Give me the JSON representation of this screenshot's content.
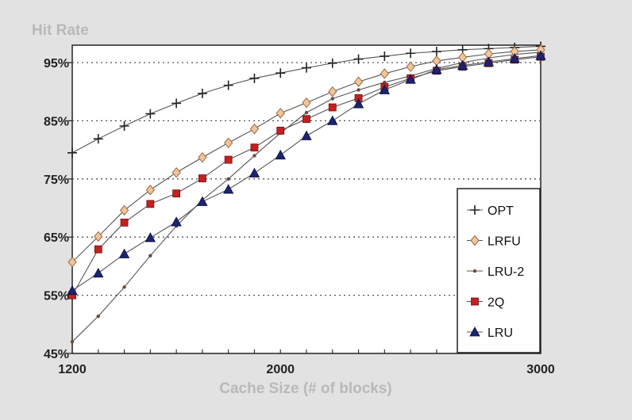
{
  "chart_data": {
    "type": "line",
    "title": "",
    "ylabel": "Hit Rate",
    "xlabel": "Cache Size (# of blocks)",
    "xlim": [
      1200,
      3000
    ],
    "ylim": [
      45,
      95
    ],
    "x_ticks": [
      1200,
      2000,
      3000
    ],
    "x_tick_labels": [
      "1200",
      "2000",
      "3000"
    ],
    "y_ticks": [
      45,
      55,
      65,
      75,
      85,
      95
    ],
    "y_tick_labels": [
      "45%",
      "55%",
      "65%",
      "75%",
      "85%",
      "95%"
    ],
    "grid": "horizontal dotted",
    "legend_position": "bottom-right",
    "x": [
      1200,
      1300,
      1400,
      1500,
      1600,
      1700,
      1800,
      1900,
      2000,
      2100,
      2200,
      2300,
      2400,
      2500,
      2600,
      2700,
      2800,
      2900,
      3000
    ],
    "series": [
      {
        "name": "OPT",
        "marker": "plus",
        "color": "#333333",
        "values": [
          79.5,
          81.9,
          84.1,
          86.2,
          88.0,
          89.7,
          91.1,
          92.3,
          93.2,
          94.1,
          94.9,
          95.6,
          96.1,
          96.6,
          96.9,
          97.2,
          97.4,
          97.6,
          97.8
        ]
      },
      {
        "name": "LRFU",
        "marker": "diamond",
        "color": "#f0c49c",
        "values": [
          60.7,
          65.1,
          69.6,
          73.1,
          76.1,
          78.7,
          81.2,
          83.6,
          86.3,
          88.1,
          90.0,
          91.7,
          93.1,
          94.3,
          95.3,
          95.9,
          96.5,
          96.9,
          97.2
        ]
      },
      {
        "name": "LRU-2",
        "marker": "dot",
        "color": "#6a4a3a",
        "values": [
          47.0,
          51.4,
          56.4,
          61.8,
          66.9,
          71.4,
          75.0,
          79.0,
          82.9,
          86.4,
          88.8,
          90.3,
          91.6,
          92.7,
          94.0,
          95.0,
          95.8,
          96.4,
          96.8
        ]
      },
      {
        "name": "2Q",
        "marker": "square",
        "color": "#c42020",
        "values": [
          55.0,
          62.9,
          67.5,
          70.7,
          72.5,
          75.1,
          78.3,
          80.4,
          83.3,
          85.3,
          87.3,
          88.9,
          90.8,
          92.3,
          93.6,
          94.3,
          94.9,
          95.5,
          96.0
        ]
      },
      {
        "name": "LRU",
        "marker": "triangle",
        "color": "#1c2470",
        "values": [
          55.8,
          58.8,
          62.1,
          64.9,
          67.6,
          71.1,
          73.2,
          76.0,
          79.1,
          82.4,
          85.0,
          87.9,
          90.3,
          92.1,
          93.8,
          94.5,
          95.1,
          95.7,
          96.2
        ]
      }
    ]
  }
}
